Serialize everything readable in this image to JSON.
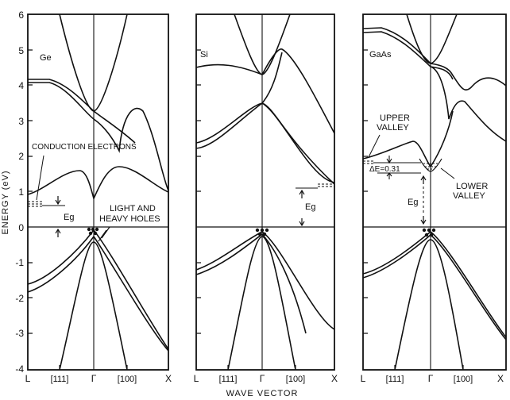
{
  "figure": {
    "y_axis_label": "ENERGY (eV)",
    "x_axis_label": "WAVE VECTOR",
    "y_ticks": [
      "6",
      "5",
      "4",
      "3",
      "2",
      "1",
      "0",
      "-1",
      "-2",
      "-3",
      "-4"
    ],
    "x_ticks": [
      "L",
      "[111]",
      "Γ",
      "[100]",
      "X"
    ]
  },
  "panels": [
    {
      "id": "ge",
      "material": "Ge",
      "annotations": {
        "conduction_electrons": "CONDUCTION ELECTRONS",
        "eg": "Eg",
        "holes_line1": "LIGHT AND",
        "holes_line2": "HEAVY HOLES"
      }
    },
    {
      "id": "si",
      "material": "Si",
      "annotations": {
        "eg": "Eg"
      }
    },
    {
      "id": "gaas",
      "material": "GaAs",
      "annotations": {
        "upper_valley_line1": "UPPER",
        "upper_valley_line2": "VALLEY",
        "delta_e": "ΔE=0.31",
        "lower_valley_line1": "LOWER",
        "lower_valley_line2": "VALLEY",
        "eg": "Eg"
      }
    }
  ],
  "colors": {
    "ink": "#111111",
    "paper": "#ffffff"
  }
}
